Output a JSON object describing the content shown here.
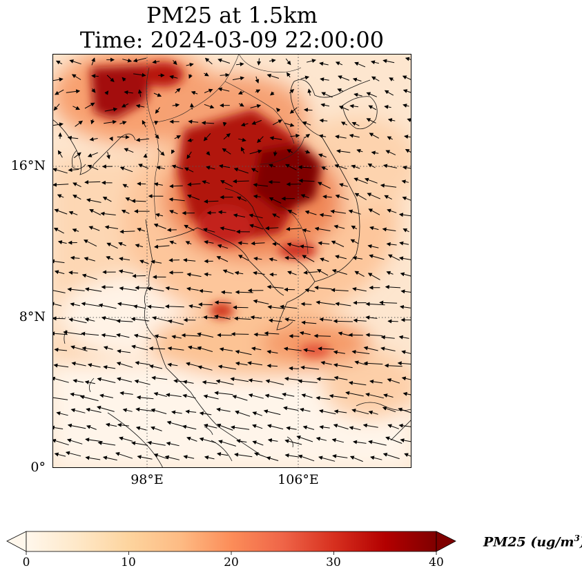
{
  "title": {
    "line1": "PM25 at 1.5km",
    "line2": "Time: 2024-03-09 22:00:00"
  },
  "axes": {
    "lat_ticks": [
      "16°N",
      "8°N",
      "0°"
    ],
    "lon_ticks": [
      "98°E",
      "106°E"
    ],
    "lat_tick_values": [
      16,
      8,
      0
    ],
    "lon_tick_values": [
      98,
      106
    ],
    "lon_range": [
      93,
      112
    ],
    "lat_range": [
      0,
      22
    ],
    "gridlines": "dotted"
  },
  "colorbar": {
    "label_main": "PM25 (ug/m",
    "label_sup": "3",
    "label_end": ")",
    "ticks": [
      "0",
      "10",
      "20",
      "30",
      "40"
    ],
    "range": [
      0,
      40
    ],
    "extend": "both",
    "colormap": "OrRd",
    "colors": [
      "#fff7ec",
      "#fee8c8",
      "#fdd49e",
      "#fdbb84",
      "#fc8d59",
      "#ef6548",
      "#d7301f",
      "#b30000",
      "#7f0000"
    ]
  },
  "map_data": {
    "variable": "PM25",
    "level": "1.5km",
    "overlay": "wind vectors (arrows)",
    "features": [
      "coastlines",
      "country borders"
    ]
  }
}
